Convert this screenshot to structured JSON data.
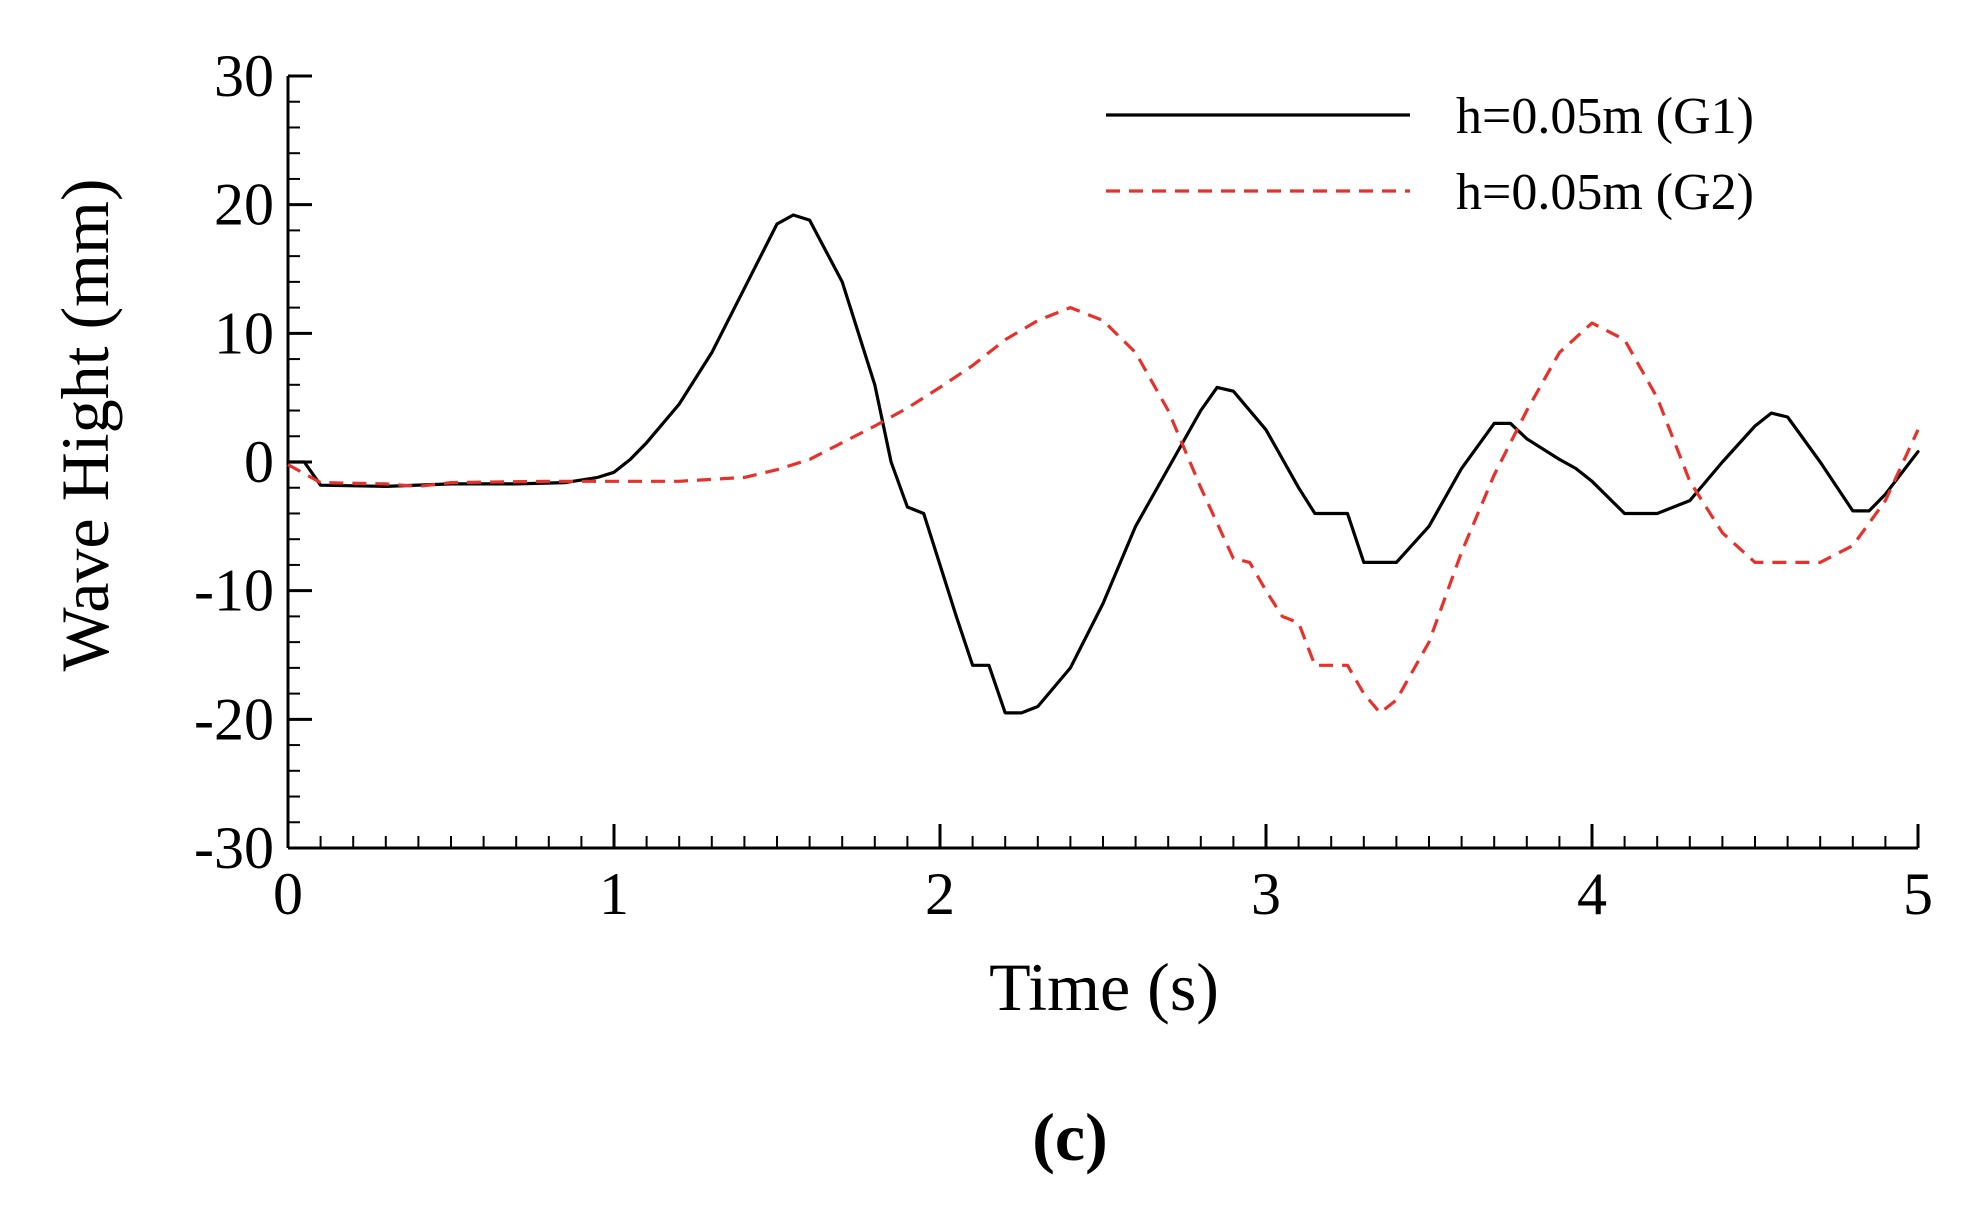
{
  "chart_data": {
    "type": "line",
    "xlabel": "Time (s)",
    "ylabel": "Wave Hight (mm)",
    "xlim": [
      0,
      5
    ],
    "ylim": [
      -30,
      30
    ],
    "xticks": [
      0,
      1,
      2,
      3,
      4,
      5
    ],
    "yticks": [
      -30,
      -20,
      -10,
      0,
      10,
      20,
      30
    ],
    "x_minor_step": 0.1,
    "y_minor_step": 2,
    "grid": false,
    "legend": "top-right",
    "panel_label": "(c)",
    "series": [
      {
        "name": "h=0.05m (G1)",
        "color": "#000000",
        "dash": "solid",
        "points": [
          [
            0,
            0
          ],
          [
            0.05,
            0
          ],
          [
            0.1,
            -1.8
          ],
          [
            0.3,
            -1.9
          ],
          [
            0.5,
            -1.7
          ],
          [
            0.7,
            -1.7
          ],
          [
            0.85,
            -1.6
          ],
          [
            0.95,
            -1.2
          ],
          [
            1.0,
            -0.8
          ],
          [
            1.05,
            0.2
          ],
          [
            1.1,
            1.5
          ],
          [
            1.2,
            4.5
          ],
          [
            1.3,
            8.5
          ],
          [
            1.4,
            13.5
          ],
          [
            1.5,
            18.5
          ],
          [
            1.55,
            19.2
          ],
          [
            1.6,
            18.8
          ],
          [
            1.7,
            14
          ],
          [
            1.8,
            6
          ],
          [
            1.85,
            0
          ],
          [
            1.9,
            -3.5
          ],
          [
            1.95,
            -4
          ],
          [
            2.0,
            -8
          ],
          [
            2.05,
            -12
          ],
          [
            2.1,
            -15.8
          ],
          [
            2.15,
            -15.8
          ],
          [
            2.2,
            -19.5
          ],
          [
            2.25,
            -19.5
          ],
          [
            2.3,
            -19
          ],
          [
            2.4,
            -16
          ],
          [
            2.5,
            -11
          ],
          [
            2.6,
            -5
          ],
          [
            2.7,
            -0.5
          ],
          [
            2.8,
            4
          ],
          [
            2.85,
            5.8
          ],
          [
            2.9,
            5.5
          ],
          [
            3.0,
            2.5
          ],
          [
            3.1,
            -2
          ],
          [
            3.15,
            -4
          ],
          [
            3.25,
            -4
          ],
          [
            3.3,
            -7.8
          ],
          [
            3.4,
            -7.8
          ],
          [
            3.5,
            -5
          ],
          [
            3.6,
            -0.5
          ],
          [
            3.7,
            3
          ],
          [
            3.75,
            3
          ],
          [
            3.8,
            1.8
          ],
          [
            3.9,
            0.2
          ],
          [
            3.95,
            -0.5
          ],
          [
            4.0,
            -1.5
          ],
          [
            4.1,
            -4
          ],
          [
            4.2,
            -4
          ],
          [
            4.3,
            -3
          ],
          [
            4.4,
            0
          ],
          [
            4.5,
            2.8
          ],
          [
            4.55,
            3.8
          ],
          [
            4.6,
            3.5
          ],
          [
            4.7,
            0
          ],
          [
            4.8,
            -3.8
          ],
          [
            4.85,
            -3.8
          ],
          [
            4.9,
            -2.5
          ],
          [
            5.0,
            0.8
          ]
        ]
      },
      {
        "name": "h=0.05m (G2)",
        "color": "#e8312a",
        "dash": "dashed",
        "points": [
          [
            0,
            -0.2
          ],
          [
            0.1,
            -1.6
          ],
          [
            0.3,
            -1.7
          ],
          [
            0.4,
            -1.9
          ],
          [
            0.5,
            -1.6
          ],
          [
            0.8,
            -1.5
          ],
          [
            1.0,
            -1.5
          ],
          [
            1.2,
            -1.5
          ],
          [
            1.4,
            -1.2
          ],
          [
            1.5,
            -0.6
          ],
          [
            1.6,
            0.2
          ],
          [
            1.7,
            1.5
          ],
          [
            1.8,
            2.8
          ],
          [
            1.9,
            4.2
          ],
          [
            2.0,
            5.8
          ],
          [
            2.1,
            7.5
          ],
          [
            2.2,
            9.5
          ],
          [
            2.3,
            11
          ],
          [
            2.4,
            12
          ],
          [
            2.5,
            11
          ],
          [
            2.6,
            8.5
          ],
          [
            2.7,
            4
          ],
          [
            2.8,
            -2
          ],
          [
            2.9,
            -7.5
          ],
          [
            2.95,
            -7.8
          ],
          [
            3.0,
            -10
          ],
          [
            3.05,
            -12
          ],
          [
            3.1,
            -12.5
          ],
          [
            3.15,
            -15.8
          ],
          [
            3.25,
            -15.8
          ],
          [
            3.3,
            -18
          ],
          [
            3.35,
            -19.5
          ],
          [
            3.4,
            -18.5
          ],
          [
            3.5,
            -14
          ],
          [
            3.6,
            -7
          ],
          [
            3.7,
            -1
          ],
          [
            3.8,
            4
          ],
          [
            3.9,
            8.5
          ],
          [
            4.0,
            10.8
          ],
          [
            4.1,
            9.5
          ],
          [
            4.2,
            5
          ],
          [
            4.3,
            -1.5
          ],
          [
            4.4,
            -5.5
          ],
          [
            4.5,
            -7.8
          ],
          [
            4.7,
            -7.8
          ],
          [
            4.8,
            -6.5
          ],
          [
            4.9,
            -3
          ],
          [
            5.0,
            2.5
          ]
        ]
      }
    ]
  }
}
